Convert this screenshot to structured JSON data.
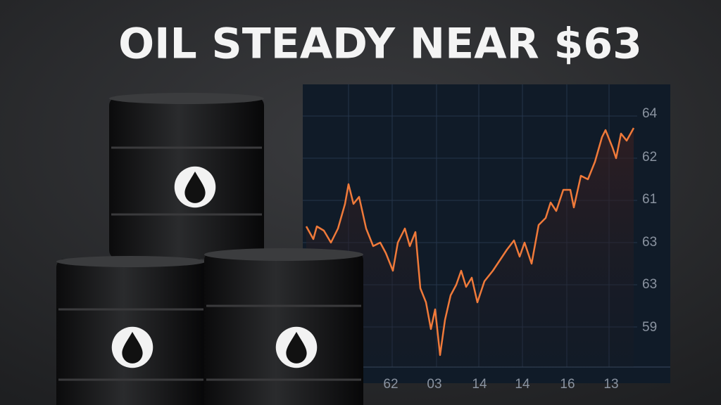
{
  "header": {
    "title": "OIL STEADY NEAR $63"
  },
  "chart": {
    "y_labels": [
      "64",
      "62",
      "61",
      "63",
      "63",
      "59"
    ],
    "x_labels": [
      "62",
      "03",
      "14",
      "14",
      "16",
      "13"
    ]
  }
}
